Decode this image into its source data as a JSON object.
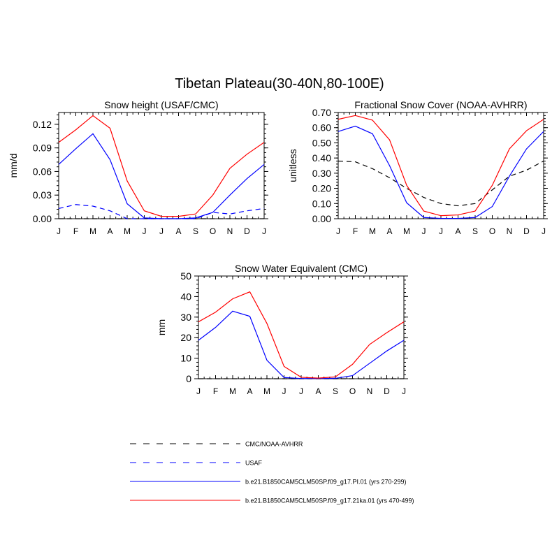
{
  "figure": {
    "title": "Tibetan Plateau(30-40N,80-100E)"
  },
  "legend": [
    {
      "label": "CMC/NOAA-AVHRR",
      "color": "#000000",
      "dashed": true
    },
    {
      "label": "USAF",
      "color": "#0000ff",
      "dashed": true
    },
    {
      "label": "b.e21.B1850CAM5CLM50SP.f09_g17.PI.01 (yrs 270-299)",
      "color": "#0000ff",
      "dashed": false
    },
    {
      "label": "b.e21.B1850CAM5CLM50SP.f09_g17.21ka.01 (yrs 470-499)",
      "color": "#ff0000",
      "dashed": false
    }
  ],
  "chart_data": [
    {
      "type": "line",
      "title": "Snow height (USAF/CMC)",
      "xlabel": "",
      "ylabel": "mm/d",
      "categories": [
        "J",
        "F",
        "M",
        "A",
        "M",
        "J",
        "J",
        "A",
        "S",
        "O",
        "N",
        "D",
        "J"
      ],
      "ylim": [
        0,
        0.135
      ],
      "yticks": [
        0,
        0.03,
        0.06,
        0.09,
        0.12
      ],
      "ytick_labels": [
        "0.00",
        "0.03",
        "0.06",
        "0.09",
        "0.12"
      ],
      "series": [
        {
          "name": "CMC/NOAA-AVHRR",
          "color": "#000000",
          "dash": true,
          "values": [
            0,
            0,
            0,
            0,
            0,
            0,
            0,
            0,
            0,
            0,
            0,
            0,
            0
          ]
        },
        {
          "name": "USAF",
          "color": "#0000ff",
          "dash": true,
          "values": [
            0.013,
            0.018,
            0.016,
            0.01,
            0.0,
            0.0,
            0.0,
            0.0,
            0.0,
            0.008,
            0.006,
            0.01,
            0.013
          ]
        },
        {
          "name": "b.e21.B1850CAM5CLM50SP.f09_g17.PI.01 (yrs 270-299)",
          "color": "#0000ff",
          "dash": false,
          "values": [
            0.069,
            0.089,
            0.108,
            0.075,
            0.019,
            0.001,
            0.0,
            0.0,
            0.001,
            0.008,
            0.03,
            0.051,
            0.069
          ]
        },
        {
          "name": "b.e21.B1850CAM5CLM50SP.f09_g17.21ka.01 (yrs 470-499)",
          "color": "#ff0000",
          "dash": false,
          "values": [
            0.097,
            0.113,
            0.131,
            0.115,
            0.048,
            0.01,
            0.003,
            0.003,
            0.006,
            0.03,
            0.064,
            0.082,
            0.097
          ]
        }
      ]
    },
    {
      "type": "line",
      "title": "Fractional Snow Cover (NOAA-AVHRR)",
      "xlabel": "",
      "ylabel": "unitless",
      "categories": [
        "J",
        "F",
        "M",
        "A",
        "M",
        "J",
        "J",
        "A",
        "S",
        "O",
        "N",
        "D",
        "J"
      ],
      "ylim": [
        0,
        0.7
      ],
      "yticks": [
        0,
        0.1,
        0.2,
        0.3,
        0.4,
        0.5,
        0.6,
        0.7
      ],
      "ytick_labels": [
        "0.00",
        "0.10",
        "0.20",
        "0.30",
        "0.40",
        "0.50",
        "0.60",
        "0.70"
      ],
      "series": [
        {
          "name": "CMC/NOAA-AVHRR",
          "color": "#000000",
          "dash": true,
          "values": [
            0.38,
            0.375,
            0.33,
            0.27,
            0.2,
            0.14,
            0.1,
            0.085,
            0.1,
            0.19,
            0.28,
            0.32,
            0.38
          ]
        },
        {
          "name": "b.e21.B1850CAM5CLM50SP.f09_g17.PI.01 (yrs 270-299)",
          "color": "#0000ff",
          "dash": false,
          "values": [
            0.575,
            0.61,
            0.56,
            0.35,
            0.105,
            0.008,
            0.002,
            0.002,
            0.008,
            0.08,
            0.28,
            0.46,
            0.575
          ]
        },
        {
          "name": "b.e21.B1850CAM5CLM50SP.f09_g17.21ka.01 (yrs 470-499)",
          "color": "#ff0000",
          "dash": false,
          "values": [
            0.655,
            0.68,
            0.65,
            0.52,
            0.22,
            0.05,
            0.02,
            0.025,
            0.05,
            0.22,
            0.46,
            0.58,
            0.655
          ]
        }
      ]
    },
    {
      "type": "line",
      "title": "Snow Water Equivalent (CMC)",
      "xlabel": "",
      "ylabel": "mm",
      "categories": [
        "J",
        "F",
        "M",
        "A",
        "M",
        "J",
        "J",
        "A",
        "S",
        "O",
        "N",
        "D",
        "J"
      ],
      "ylim": [
        0,
        50
      ],
      "yticks": [
        0,
        10,
        20,
        30,
        40,
        50
      ],
      "ytick_labels": [
        "0",
        "10",
        "20",
        "30",
        "40",
        "50"
      ],
      "series": [
        {
          "name": "CMC/NOAA-AVHRR",
          "color": "#000000",
          "dash": true,
          "values": [
            0,
            0,
            0,
            0,
            0,
            0,
            0,
            0,
            0,
            0,
            0,
            0,
            0
          ]
        },
        {
          "name": "b.e21.B1850CAM5CLM50SP.f09_g17.PI.01 (yrs 270-299)",
          "color": "#0000ff",
          "dash": false,
          "values": [
            18.7,
            25.0,
            32.9,
            30.4,
            9.0,
            0.6,
            0.1,
            0.1,
            0.2,
            1.5,
            7.5,
            13.5,
            18.7
          ]
        },
        {
          "name": "b.e21.B1850CAM5CLM50SP.f09_g17.21ka.01 (yrs 470-499)",
          "color": "#ff0000",
          "dash": false,
          "values": [
            27.7,
            32.4,
            38.9,
            42.3,
            26.9,
            6.0,
            0.7,
            0.3,
            0.9,
            7.0,
            16.7,
            22.4,
            27.7
          ]
        }
      ]
    }
  ]
}
